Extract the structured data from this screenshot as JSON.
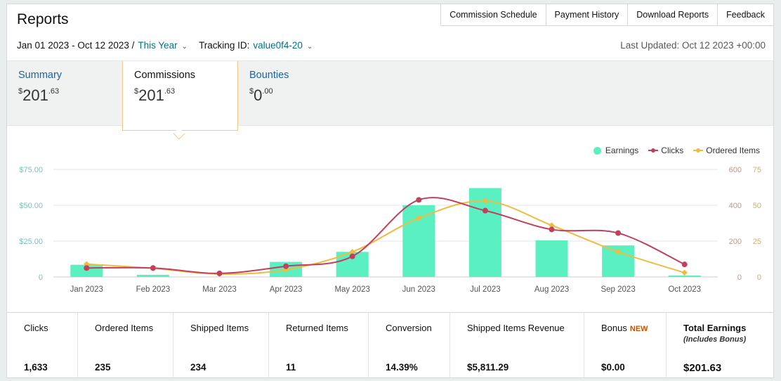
{
  "page": {
    "title": "Reports",
    "top_links": [
      "Commission Schedule",
      "Payment History",
      "Download Reports",
      "Feedback"
    ],
    "date_range": "Jan 01 2023 - Oct 12 2023 /",
    "period_selector": "This Year",
    "tracking_label": "Tracking ID:",
    "tracking_id": "value0f4-20",
    "last_updated": "Last Updated: Oct 12 2023 +00:00"
  },
  "tabs": [
    {
      "label": "Summary",
      "amount_dollars": "201",
      "amount_cents": ".63",
      "currency": "$"
    },
    {
      "label": "Commissions",
      "amount_dollars": "201",
      "amount_cents": ".63",
      "currency": "$"
    },
    {
      "label": "Bounties",
      "amount_dollars": "0",
      "amount_cents": ".00",
      "currency": "$"
    }
  ],
  "legend": {
    "earnings": "Earnings",
    "clicks": "Clicks",
    "ordered_items": "Ordered Items"
  },
  "colors": {
    "earnings": "#5bf0c2",
    "clicks": "#c0405e",
    "ordered_items": "#eebc40",
    "link": "#2162a1",
    "teal": "#007185"
  },
  "chart_data": {
    "type": "bar",
    "categories": [
      "Jan 2023",
      "Feb 2023",
      "Mar 2023",
      "Apr 2023",
      "May 2023",
      "Jun 2023",
      "Jul 2023",
      "Aug 2023",
      "Sep 2023",
      "Oct 2023"
    ],
    "series": [
      {
        "name": "Earnings",
        "axis": "left",
        "type": "bar",
        "values": [
          8.5,
          1.5,
          0,
          10.5,
          17.5,
          50,
          62,
          25.5,
          22,
          1
        ]
      },
      {
        "name": "Clicks",
        "axis": "right1",
        "type": "line",
        "values": [
          50,
          50,
          20,
          60,
          115,
          430,
          370,
          265,
          245,
          70
        ]
      },
      {
        "name": "Ordered Items",
        "axis": "right2",
        "type": "line",
        "values": [
          9,
          6,
          2,
          5,
          17.5,
          41,
          53,
          36,
          17.5,
          3
        ]
      }
    ],
    "y_left": {
      "ticks": [
        "$75.00",
        "$50.00",
        "$25.00",
        "0"
      ],
      "range": [
        0,
        75
      ]
    },
    "y_right1": {
      "ticks": [
        "600",
        "400",
        "200",
        "0"
      ],
      "range": [
        0,
        600
      ]
    },
    "y_right2": {
      "ticks": [
        "75",
        "50",
        "25",
        "0"
      ],
      "range": [
        0,
        75
      ]
    },
    "grid": true,
    "legend": "top-right"
  },
  "stats": [
    {
      "label": "Clicks",
      "value": "1,633"
    },
    {
      "label": "Ordered Items",
      "value": "235"
    },
    {
      "label": "Shipped Items",
      "value": "234"
    },
    {
      "label": "Returned Items",
      "value": "11"
    },
    {
      "label": "Conversion",
      "value": "14.39%"
    },
    {
      "label": "Shipped Items Revenue",
      "value": "$5,811.29"
    },
    {
      "label": "Bonus",
      "badge": "NEW",
      "value": "$0.00"
    },
    {
      "label": "Total Earnings",
      "sublabel": "(Includes Bonus)",
      "value": "$201.63"
    }
  ]
}
